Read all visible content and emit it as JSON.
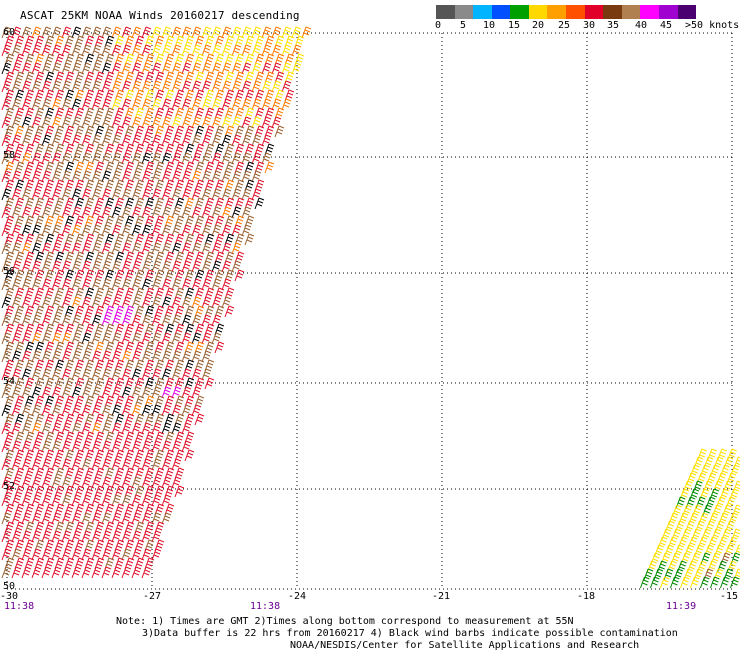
{
  "title": "ASCAT 25KM NOAA Winds 20160217 descending",
  "legend": {
    "swatches": [
      "#555555",
      "#8a8a8a",
      "#00b4ff",
      "#0050ff",
      "#00a000",
      "#ffd800",
      "#ffa000",
      "#ff5000",
      "#e0002a",
      "#7a3a10",
      "#b08050",
      "#ff00ff",
      "#a000d0",
      "#4a0070"
    ],
    "labels": [
      "0",
      "5",
      "10",
      "15",
      "20",
      "25",
      "30",
      "35",
      "40",
      "45",
      ">50 knots"
    ]
  },
  "lat_labels": [
    "60",
    "58",
    "56",
    "54",
    "52",
    "50"
  ],
  "lon_labels": [
    "-30",
    "-27",
    "-24",
    "-21",
    "-18",
    "-15"
  ],
  "time_labels": [
    "11:38",
    "11:38",
    "11:39"
  ],
  "notes": {
    "line1": "Note: 1) Times are GMT 2)Times along bottom correspond to measurement at 55N",
    "line2": "3)Data buffer is 22 hrs from 20160217 4) Black wind barbs indicate possible contamination",
    "line3": "NOAA/NESDIS/Center for Satellite Applications and Research"
  },
  "colors": {
    "red": "#e0102a",
    "brown": "#9a6030",
    "orange": "#ff7a00",
    "yellow": "#ffe000",
    "green": "#008a00",
    "black": "#000000",
    "magenta": "#e000e0"
  }
}
